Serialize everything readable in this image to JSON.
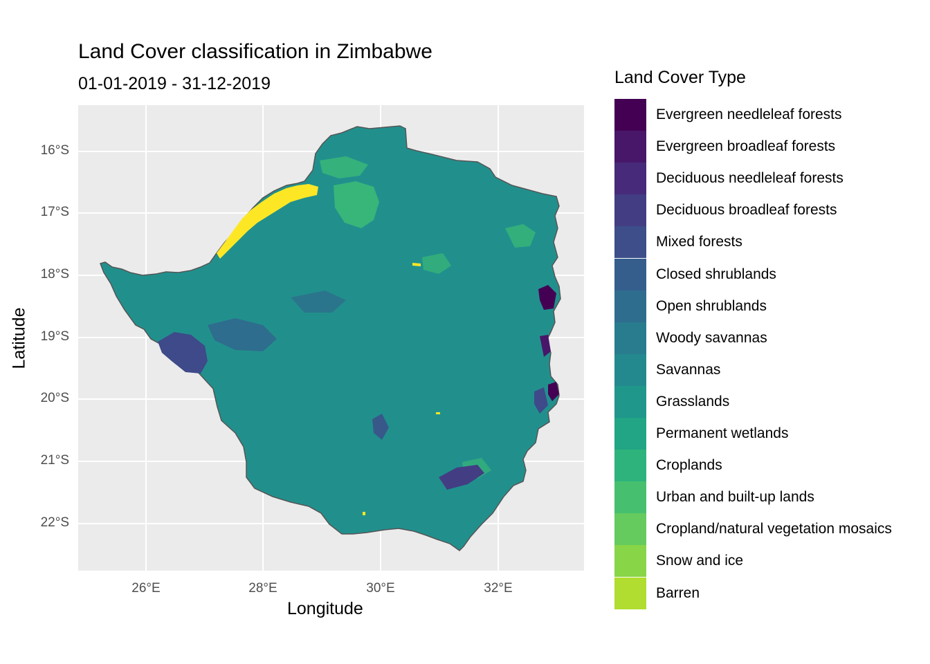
{
  "title": "Land Cover classification in Zimbabwe",
  "subtitle": "01-01-2019 - 31-12-2019",
  "axes": {
    "x_label": "Longitude",
    "y_label": "Latitude",
    "x_ticks": [
      "26°E",
      "28°E",
      "30°E",
      "32°E"
    ],
    "y_ticks": [
      "16°S",
      "17°S",
      "18°S",
      "19°S",
      "20°S",
      "21°S",
      "22°S"
    ]
  },
  "colors": {
    "panel_background": "#ebebeb",
    "grid": "#ffffff",
    "country_fill": "#21908d",
    "country_border": "#555555"
  },
  "legend": {
    "title": "Land Cover Type",
    "items": [
      {
        "label": "Evergreen needleleaf forests",
        "color": "#440154"
      },
      {
        "label": "Evergreen broadleaf forests",
        "color": "#481769"
      },
      {
        "label": "Deciduous needleleaf forests",
        "color": "#472a7a"
      },
      {
        "label": "Deciduous broadleaf forests",
        "color": "#433d84"
      },
      {
        "label": "Mixed forests",
        "color": "#3d4e8a"
      },
      {
        "label": "Closed shrublands",
        "color": "#355e8d"
      },
      {
        "label": "Open shrublands",
        "color": "#2e6d8e"
      },
      {
        "label": "Woody savannas",
        "color": "#297b8e"
      },
      {
        "label": "Savannas",
        "color": "#23898e"
      },
      {
        "label": "Grasslands",
        "color": "#1f978b"
      },
      {
        "label": "Permanent wetlands",
        "color": "#21a585"
      },
      {
        "label": "Croplands",
        "color": "#2eb37c"
      },
      {
        "label": "Urban and built-up lands",
        "color": "#46c06f"
      },
      {
        "label": "Cropland/natural vegetation mosaics",
        "color": "#65cb5e"
      },
      {
        "label": "Snow and ice",
        "color": "#89d548"
      },
      {
        "label": "Barren",
        "color": "#b0dd2f"
      }
    ]
  }
}
